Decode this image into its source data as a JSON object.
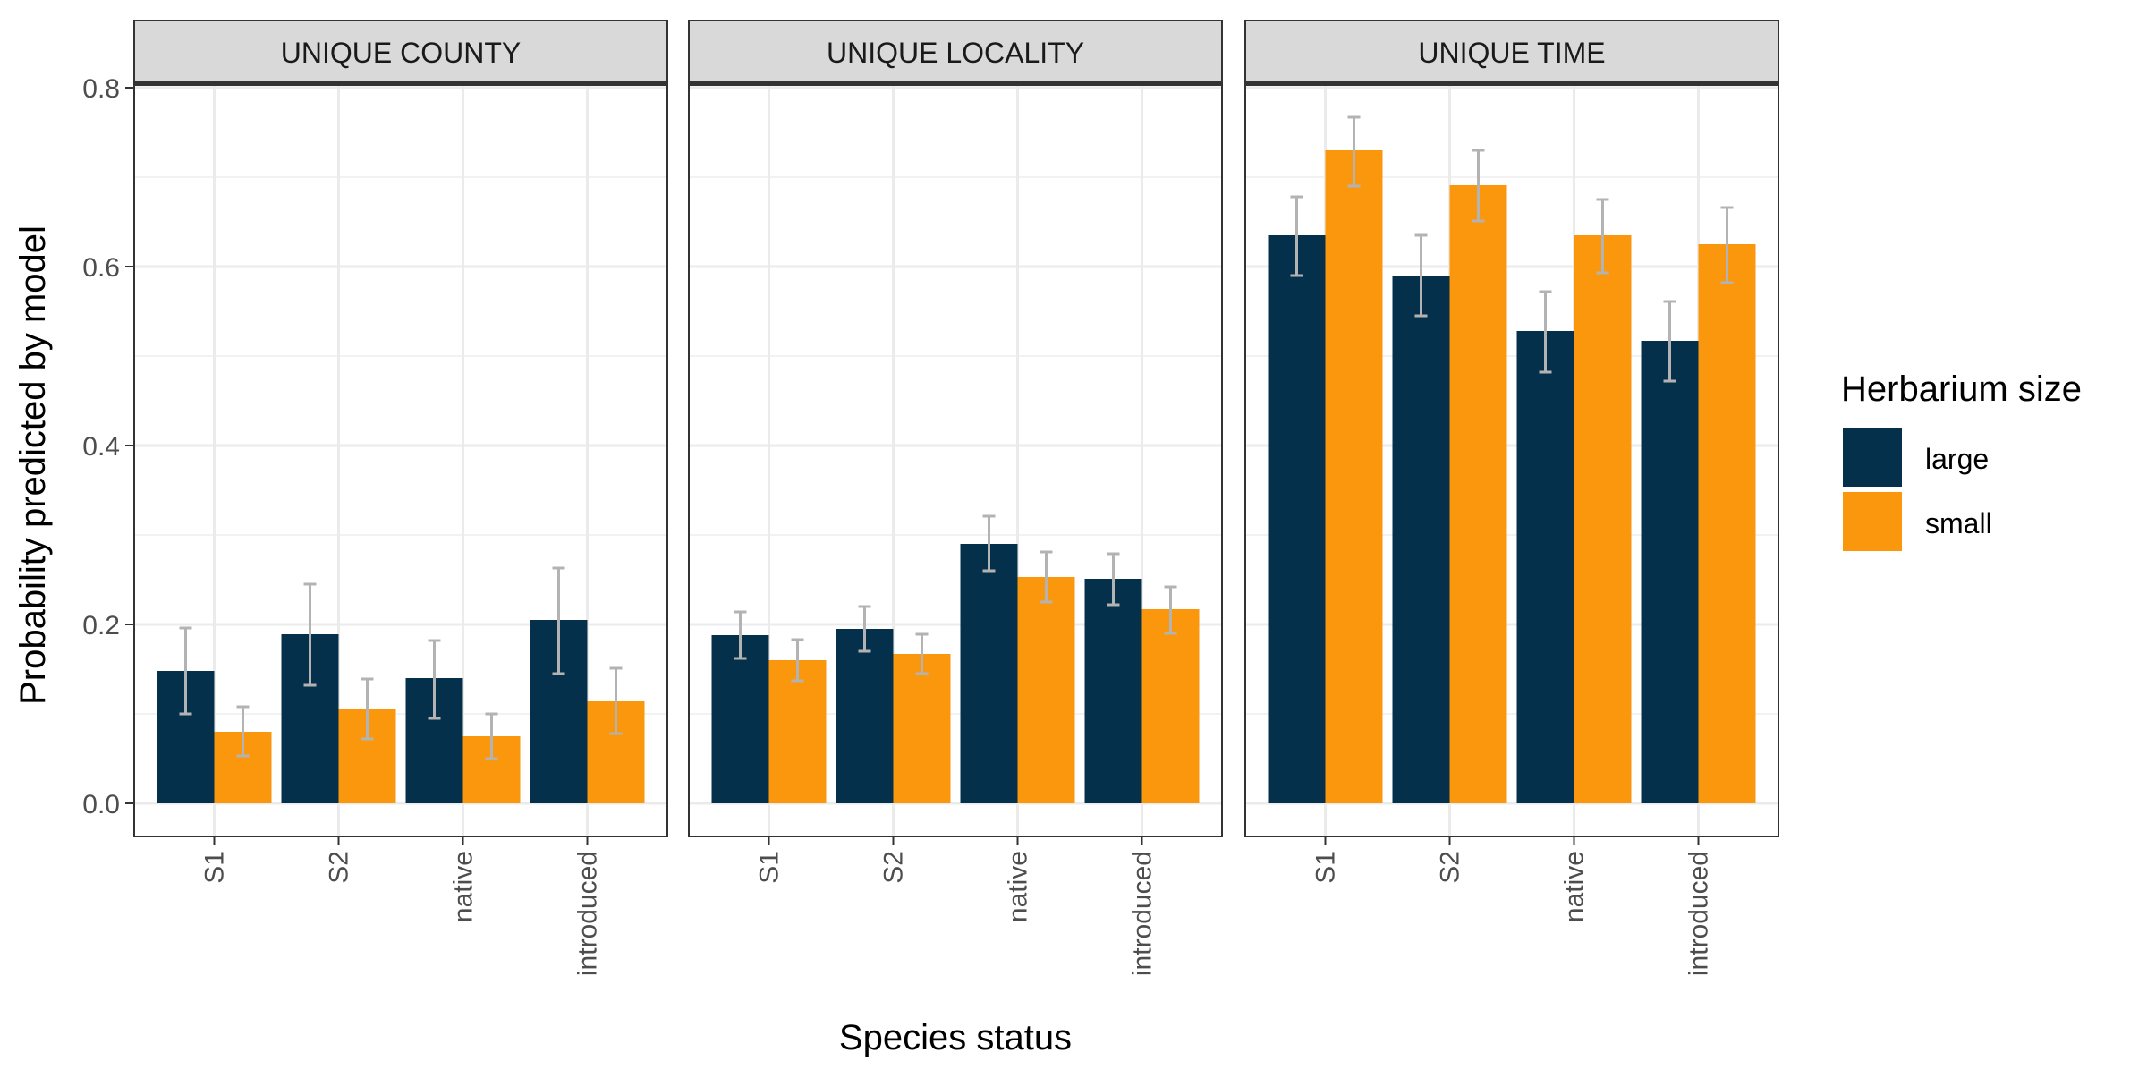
{
  "chart_data": {
    "type": "bar",
    "xlabel": "Species status",
    "ylabel": "Probability predicted by model",
    "categories": [
      "S1",
      "S2",
      "native",
      "introduced"
    ],
    "ylim": [
      0,
      0.8
    ],
    "yticks": [
      "0.0",
      "0.2",
      "0.4",
      "0.6",
      "0.8"
    ],
    "grid": true,
    "legend": {
      "title": "Herbarium size",
      "position": "right",
      "entries": [
        "large",
        "small"
      ]
    },
    "colors": {
      "large": "#04304b",
      "small": "#fb970d",
      "error_bar": "#b3b3b3",
      "strip_bg": "#d9d9d9",
      "grid": "#ebebeb"
    },
    "facets": [
      {
        "title": "UNIQUE COUNTY",
        "series": [
          {
            "name": "large",
            "values": [
              0.148,
              0.189,
              0.14,
              0.205
            ],
            "err_low": [
              0.1,
              0.132,
              0.095,
              0.145
            ],
            "err_high": [
              0.196,
              0.245,
              0.182,
              0.263
            ]
          },
          {
            "name": "small",
            "values": [
              0.08,
              0.105,
              0.075,
              0.114
            ],
            "err_low": [
              0.053,
              0.072,
              0.05,
              0.078
            ],
            "err_high": [
              0.108,
              0.139,
              0.1,
              0.151
            ]
          }
        ]
      },
      {
        "title": "UNIQUE LOCALITY",
        "series": [
          {
            "name": "large",
            "values": [
              0.188,
              0.195,
              0.29,
              0.251
            ],
            "err_low": [
              0.162,
              0.17,
              0.26,
              0.222
            ],
            "err_high": [
              0.214,
              0.22,
              0.321,
              0.279
            ]
          },
          {
            "name": "small",
            "values": [
              0.16,
              0.167,
              0.253,
              0.217
            ],
            "err_low": [
              0.137,
              0.145,
              0.225,
              0.19
            ],
            "err_high": [
              0.183,
              0.189,
              0.281,
              0.242
            ]
          }
        ]
      },
      {
        "title": "UNIQUE TIME",
        "series": [
          {
            "name": "large",
            "values": [
              0.635,
              0.59,
              0.528,
              0.517
            ],
            "err_low": [
              0.59,
              0.545,
              0.482,
              0.472
            ],
            "err_high": [
              0.678,
              0.635,
              0.572,
              0.561
            ]
          },
          {
            "name": "small",
            "values": [
              0.73,
              0.691,
              0.635,
              0.625
            ],
            "err_low": [
              0.69,
              0.651,
              0.593,
              0.582
            ],
            "err_high": [
              0.767,
              0.73,
              0.675,
              0.666
            ]
          }
        ]
      }
    ]
  }
}
